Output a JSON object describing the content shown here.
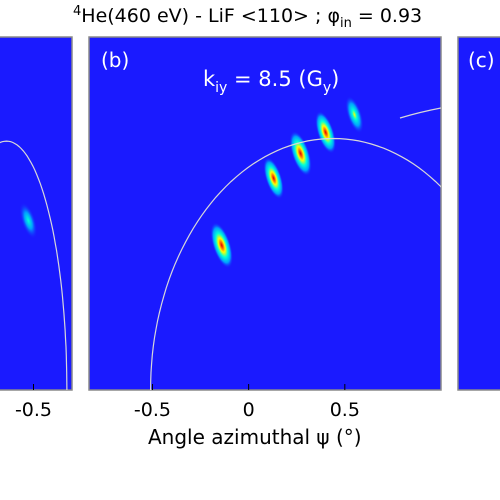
{
  "chart_data": {
    "type": "heatmap",
    "title": {
      "sup": "4",
      "lead": "He(460 eV) - LiF <110> ; ",
      "phi": "φ",
      "phi_sub": "in",
      "tail": " = 0.93"
    },
    "xlabel": "Angle azimuthal ψ (°)",
    "background_color": "#1a1aff",
    "axis_frame_color": "#8a8a8a",
    "curve_color": "#d8d8d8",
    "colormap": [
      "#0000ff",
      "#00a0ff",
      "#00ffd8",
      "#ffff00",
      "#ff6a00",
      "#d80000"
    ],
    "panels": [
      {
        "label": "",
        "xlim": [
          -1.1,
          0.1
        ],
        "xticks": [
          {
            "v": -0.5,
            "label": "-0.5"
          }
        ],
        "spots": [
          {
            "x": -0.58,
            "y": 0.48,
            "peak": 0.5
          }
        ],
        "ring": {
          "cx": -0.92,
          "radius": 0.94
        }
      },
      {
        "label": "(b)",
        "annotation": {
          "k": "k",
          "k_sub": "iy",
          "text": " = 8.5 (G",
          "g_sub": "y",
          "close": ")"
        },
        "xlim": [
          -0.83,
          1.0
        ],
        "ylim": [
          0,
          1
        ],
        "xticks": [
          {
            "v": -0.5,
            "label": "-0.5"
          },
          {
            "v": 0,
            "label": "0"
          },
          {
            "v": 0.5,
            "label": "0.5"
          }
        ],
        "spots": [
          {
            "x": -0.14,
            "y": 0.41,
            "peak": 1.0
          },
          {
            "x": 0.13,
            "y": 0.6,
            "peak": 0.78
          },
          {
            "x": 0.27,
            "y": 0.67,
            "peak": 0.95
          },
          {
            "x": 0.4,
            "y": 0.73,
            "peak": 0.82
          },
          {
            "x": 0.55,
            "y": 0.78,
            "peak": 0.55
          }
        ],
        "ring": {
          "cx": 0.44,
          "radius": 0.95
        }
      },
      {
        "label": "(c)",
        "xlim": [
          0.4,
          1.6
        ],
        "spots": [],
        "ring": null
      }
    ]
  }
}
